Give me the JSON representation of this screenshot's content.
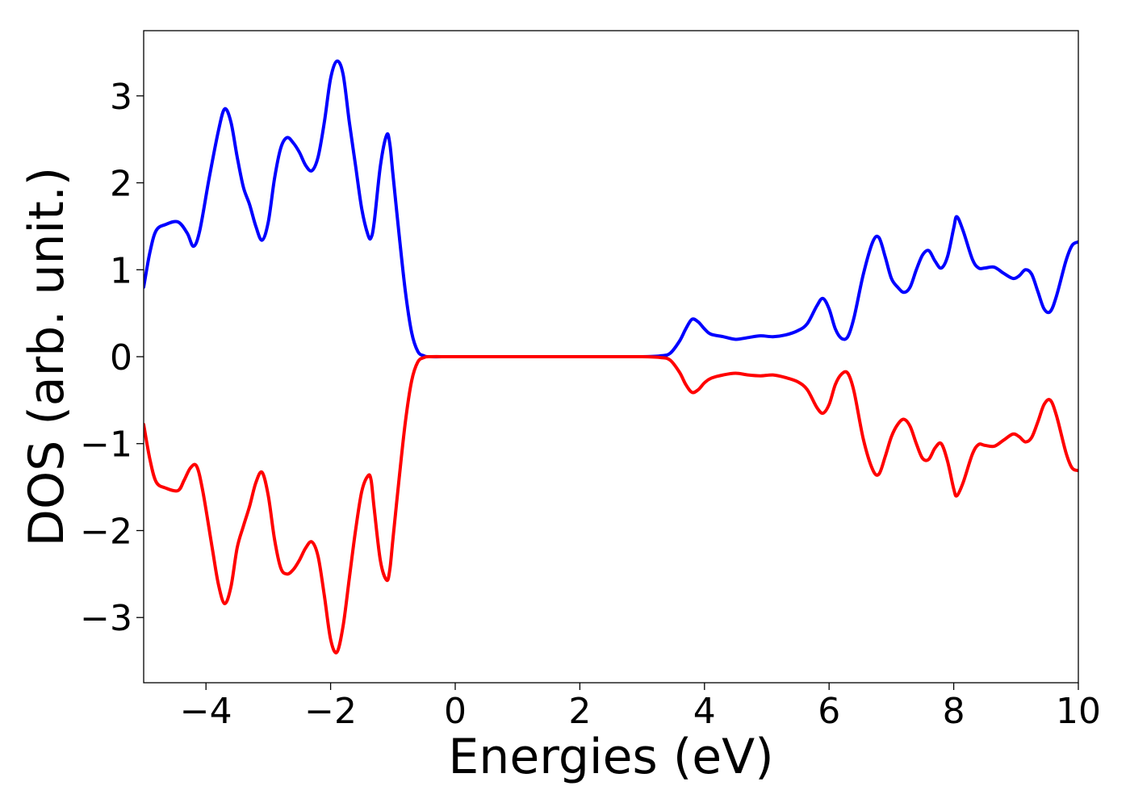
{
  "chart_data": {
    "type": "line",
    "title": "",
    "xlabel": "Energies (eV)",
    "ylabel": "DOS (arb. unit.)",
    "xlim": [
      -5,
      10
    ],
    "ylim": [
      -3.75,
      3.75
    ],
    "grid": false,
    "legend": "none",
    "x_ticks": [
      {
        "value": -4,
        "label": "−4"
      },
      {
        "value": -2,
        "label": "−2"
      },
      {
        "value": 0,
        "label": "0"
      },
      {
        "value": 2,
        "label": "2"
      },
      {
        "value": 4,
        "label": "4"
      },
      {
        "value": 6,
        "label": "6"
      },
      {
        "value": 8,
        "label": "8"
      },
      {
        "value": 10,
        "label": "10"
      }
    ],
    "y_ticks": [
      {
        "value": -3,
        "label": "−3"
      },
      {
        "value": -2,
        "label": "−2"
      },
      {
        "value": -1,
        "label": "−1"
      },
      {
        "value": 0,
        "label": "0"
      },
      {
        "value": 1,
        "label": "1"
      },
      {
        "value": 2,
        "label": "2"
      },
      {
        "value": 3,
        "label": "3"
      }
    ],
    "series": [
      {
        "color": "#0000ff",
        "points": [
          [
            -5.0,
            0.8
          ],
          [
            -4.9,
            1.2
          ],
          [
            -4.8,
            1.45
          ],
          [
            -4.65,
            1.52
          ],
          [
            -4.45,
            1.55
          ],
          [
            -4.3,
            1.42
          ],
          [
            -4.2,
            1.27
          ],
          [
            -4.1,
            1.45
          ],
          [
            -3.95,
            2.05
          ],
          [
            -3.8,
            2.6
          ],
          [
            -3.7,
            2.85
          ],
          [
            -3.6,
            2.7
          ],
          [
            -3.5,
            2.3
          ],
          [
            -3.4,
            1.95
          ],
          [
            -3.3,
            1.75
          ],
          [
            -3.2,
            1.5
          ],
          [
            -3.1,
            1.34
          ],
          [
            -3.0,
            1.55
          ],
          [
            -2.9,
            2.05
          ],
          [
            -2.8,
            2.4
          ],
          [
            -2.7,
            2.52
          ],
          [
            -2.6,
            2.46
          ],
          [
            -2.5,
            2.35
          ],
          [
            -2.4,
            2.2
          ],
          [
            -2.3,
            2.14
          ],
          [
            -2.2,
            2.3
          ],
          [
            -2.1,
            2.7
          ],
          [
            -2.0,
            3.2
          ],
          [
            -1.9,
            3.4
          ],
          [
            -1.8,
            3.25
          ],
          [
            -1.7,
            2.7
          ],
          [
            -1.6,
            2.2
          ],
          [
            -1.5,
            1.7
          ],
          [
            -1.4,
            1.4
          ],
          [
            -1.35,
            1.37
          ],
          [
            -1.3,
            1.55
          ],
          [
            -1.2,
            2.2
          ],
          [
            -1.1,
            2.55
          ],
          [
            -1.05,
            2.45
          ],
          [
            -1.0,
            2.1
          ],
          [
            -0.9,
            1.4
          ],
          [
            -0.8,
            0.75
          ],
          [
            -0.7,
            0.28
          ],
          [
            -0.6,
            0.06
          ],
          [
            -0.5,
            0.01
          ],
          [
            -0.4,
            0.0
          ],
          [
            0.0,
            0.0
          ],
          [
            1.0,
            0.0
          ],
          [
            2.0,
            0.0
          ],
          [
            3.0,
            0.0
          ],
          [
            3.3,
            0.01
          ],
          [
            3.45,
            0.04
          ],
          [
            3.6,
            0.18
          ],
          [
            3.7,
            0.32
          ],
          [
            3.8,
            0.43
          ],
          [
            3.9,
            0.4
          ],
          [
            4.0,
            0.32
          ],
          [
            4.1,
            0.26
          ],
          [
            4.3,
            0.23
          ],
          [
            4.5,
            0.2
          ],
          [
            4.7,
            0.22
          ],
          [
            4.9,
            0.24
          ],
          [
            5.1,
            0.23
          ],
          [
            5.3,
            0.25
          ],
          [
            5.5,
            0.3
          ],
          [
            5.65,
            0.38
          ],
          [
            5.8,
            0.58
          ],
          [
            5.9,
            0.67
          ],
          [
            6.0,
            0.55
          ],
          [
            6.1,
            0.32
          ],
          [
            6.2,
            0.21
          ],
          [
            6.3,
            0.23
          ],
          [
            6.4,
            0.45
          ],
          [
            6.55,
            0.95
          ],
          [
            6.7,
            1.32
          ],
          [
            6.8,
            1.37
          ],
          [
            6.9,
            1.15
          ],
          [
            7.0,
            0.9
          ],
          [
            7.1,
            0.8
          ],
          [
            7.2,
            0.74
          ],
          [
            7.3,
            0.8
          ],
          [
            7.4,
            1.0
          ],
          [
            7.5,
            1.17
          ],
          [
            7.6,
            1.22
          ],
          [
            7.7,
            1.1
          ],
          [
            7.8,
            1.02
          ],
          [
            7.9,
            1.15
          ],
          [
            8.0,
            1.48
          ],
          [
            8.05,
            1.61
          ],
          [
            8.15,
            1.45
          ],
          [
            8.3,
            1.12
          ],
          [
            8.4,
            1.02
          ],
          [
            8.5,
            1.02
          ],
          [
            8.65,
            1.03
          ],
          [
            8.8,
            0.96
          ],
          [
            8.95,
            0.9
          ],
          [
            9.05,
            0.93
          ],
          [
            9.15,
            1.0
          ],
          [
            9.25,
            0.95
          ],
          [
            9.35,
            0.75
          ],
          [
            9.45,
            0.55
          ],
          [
            9.55,
            0.52
          ],
          [
            9.65,
            0.7
          ],
          [
            9.8,
            1.1
          ],
          [
            9.9,
            1.28
          ],
          [
            10.0,
            1.32
          ]
        ]
      },
      {
        "color": "#ff0000",
        "points": [
          [
            -5.0,
            -0.78
          ],
          [
            -4.9,
            -1.18
          ],
          [
            -4.8,
            -1.44
          ],
          [
            -4.65,
            -1.51
          ],
          [
            -4.45,
            -1.54
          ],
          [
            -4.35,
            -1.42
          ],
          [
            -4.25,
            -1.28
          ],
          [
            -4.15,
            -1.26
          ],
          [
            -4.05,
            -1.55
          ],
          [
            -3.9,
            -2.2
          ],
          [
            -3.8,
            -2.62
          ],
          [
            -3.7,
            -2.84
          ],
          [
            -3.6,
            -2.65
          ],
          [
            -3.5,
            -2.2
          ],
          [
            -3.4,
            -1.95
          ],
          [
            -3.3,
            -1.72
          ],
          [
            -3.2,
            -1.45
          ],
          [
            -3.1,
            -1.33
          ],
          [
            -3.0,
            -1.6
          ],
          [
            -2.9,
            -2.1
          ],
          [
            -2.8,
            -2.43
          ],
          [
            -2.7,
            -2.5
          ],
          [
            -2.6,
            -2.45
          ],
          [
            -2.5,
            -2.34
          ],
          [
            -2.4,
            -2.2
          ],
          [
            -2.3,
            -2.13
          ],
          [
            -2.2,
            -2.3
          ],
          [
            -2.1,
            -2.75
          ],
          [
            -2.0,
            -3.25
          ],
          [
            -1.9,
            -3.4
          ],
          [
            -1.8,
            -3.1
          ],
          [
            -1.7,
            -2.55
          ],
          [
            -1.6,
            -2.0
          ],
          [
            -1.5,
            -1.55
          ],
          [
            -1.4,
            -1.37
          ],
          [
            -1.35,
            -1.42
          ],
          [
            -1.3,
            -1.75
          ],
          [
            -1.2,
            -2.35
          ],
          [
            -1.1,
            -2.57
          ],
          [
            -1.05,
            -2.45
          ],
          [
            -1.0,
            -2.1
          ],
          [
            -0.9,
            -1.4
          ],
          [
            -0.8,
            -0.75
          ],
          [
            -0.7,
            -0.28
          ],
          [
            -0.6,
            -0.06
          ],
          [
            -0.5,
            -0.01
          ],
          [
            -0.4,
            0.0
          ],
          [
            0.0,
            0.0
          ],
          [
            1.0,
            0.0
          ],
          [
            2.0,
            0.0
          ],
          [
            3.0,
            0.0
          ],
          [
            3.3,
            -0.01
          ],
          [
            3.45,
            -0.04
          ],
          [
            3.6,
            -0.18
          ],
          [
            3.7,
            -0.32
          ],
          [
            3.8,
            -0.41
          ],
          [
            3.9,
            -0.38
          ],
          [
            4.0,
            -0.3
          ],
          [
            4.1,
            -0.25
          ],
          [
            4.3,
            -0.21
          ],
          [
            4.5,
            -0.19
          ],
          [
            4.7,
            -0.21
          ],
          [
            4.9,
            -0.22
          ],
          [
            5.1,
            -0.21
          ],
          [
            5.3,
            -0.24
          ],
          [
            5.5,
            -0.29
          ],
          [
            5.65,
            -0.38
          ],
          [
            5.8,
            -0.58
          ],
          [
            5.9,
            -0.65
          ],
          [
            6.0,
            -0.55
          ],
          [
            6.1,
            -0.32
          ],
          [
            6.2,
            -0.2
          ],
          [
            6.3,
            -0.19
          ],
          [
            6.4,
            -0.4
          ],
          [
            6.55,
            -0.95
          ],
          [
            6.7,
            -1.3
          ],
          [
            6.8,
            -1.35
          ],
          [
            6.9,
            -1.15
          ],
          [
            7.0,
            -0.92
          ],
          [
            7.1,
            -0.78
          ],
          [
            7.2,
            -0.72
          ],
          [
            7.3,
            -0.8
          ],
          [
            7.4,
            -1.0
          ],
          [
            7.5,
            -1.17
          ],
          [
            7.6,
            -1.18
          ],
          [
            7.7,
            -1.05
          ],
          [
            7.8,
            -1.0
          ],
          [
            7.9,
            -1.2
          ],
          [
            8.0,
            -1.52
          ],
          [
            8.05,
            -1.6
          ],
          [
            8.15,
            -1.45
          ],
          [
            8.3,
            -1.12
          ],
          [
            8.4,
            -1.01
          ],
          [
            8.5,
            -1.02
          ],
          [
            8.65,
            -1.03
          ],
          [
            8.8,
            -0.96
          ],
          [
            8.95,
            -0.89
          ],
          [
            9.05,
            -0.92
          ],
          [
            9.15,
            -0.98
          ],
          [
            9.25,
            -0.93
          ],
          [
            9.35,
            -0.75
          ],
          [
            9.45,
            -0.55
          ],
          [
            9.55,
            -0.5
          ],
          [
            9.65,
            -0.68
          ],
          [
            9.8,
            -1.1
          ],
          [
            9.9,
            -1.28
          ],
          [
            10.0,
            -1.31
          ]
        ]
      }
    ]
  }
}
